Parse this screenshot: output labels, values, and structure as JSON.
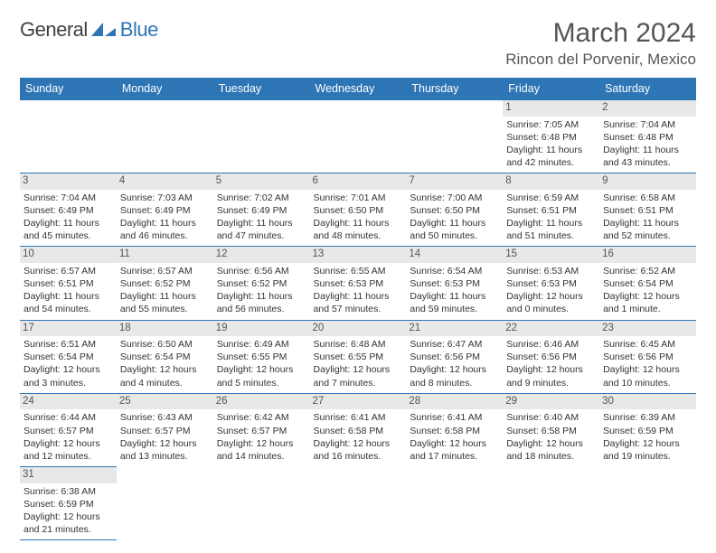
{
  "logo": {
    "text1": "General",
    "text2": "Blue"
  },
  "title": "March 2024",
  "location": "Rincon del Porvenir, Mexico",
  "colors": {
    "header_bg": "#2e75b6",
    "header_fg": "#ffffff",
    "border": "#2e75b6",
    "daynum_bg": "#e8e8e8",
    "text": "#333333"
  },
  "days_of_week": [
    "Sunday",
    "Monday",
    "Tuesday",
    "Wednesday",
    "Thursday",
    "Friday",
    "Saturday"
  ],
  "weeks": [
    [
      null,
      null,
      null,
      null,
      null,
      {
        "n": "1",
        "sr": "Sunrise: 7:05 AM",
        "ss": "Sunset: 6:48 PM",
        "d1": "Daylight: 11 hours",
        "d2": "and 42 minutes."
      },
      {
        "n": "2",
        "sr": "Sunrise: 7:04 AM",
        "ss": "Sunset: 6:48 PM",
        "d1": "Daylight: 11 hours",
        "d2": "and 43 minutes."
      }
    ],
    [
      {
        "n": "3",
        "sr": "Sunrise: 7:04 AM",
        "ss": "Sunset: 6:49 PM",
        "d1": "Daylight: 11 hours",
        "d2": "and 45 minutes."
      },
      {
        "n": "4",
        "sr": "Sunrise: 7:03 AM",
        "ss": "Sunset: 6:49 PM",
        "d1": "Daylight: 11 hours",
        "d2": "and 46 minutes."
      },
      {
        "n": "5",
        "sr": "Sunrise: 7:02 AM",
        "ss": "Sunset: 6:49 PM",
        "d1": "Daylight: 11 hours",
        "d2": "and 47 minutes."
      },
      {
        "n": "6",
        "sr": "Sunrise: 7:01 AM",
        "ss": "Sunset: 6:50 PM",
        "d1": "Daylight: 11 hours",
        "d2": "and 48 minutes."
      },
      {
        "n": "7",
        "sr": "Sunrise: 7:00 AM",
        "ss": "Sunset: 6:50 PM",
        "d1": "Daylight: 11 hours",
        "d2": "and 50 minutes."
      },
      {
        "n": "8",
        "sr": "Sunrise: 6:59 AM",
        "ss": "Sunset: 6:51 PM",
        "d1": "Daylight: 11 hours",
        "d2": "and 51 minutes."
      },
      {
        "n": "9",
        "sr": "Sunrise: 6:58 AM",
        "ss": "Sunset: 6:51 PM",
        "d1": "Daylight: 11 hours",
        "d2": "and 52 minutes."
      }
    ],
    [
      {
        "n": "10",
        "sr": "Sunrise: 6:57 AM",
        "ss": "Sunset: 6:51 PM",
        "d1": "Daylight: 11 hours",
        "d2": "and 54 minutes."
      },
      {
        "n": "11",
        "sr": "Sunrise: 6:57 AM",
        "ss": "Sunset: 6:52 PM",
        "d1": "Daylight: 11 hours",
        "d2": "and 55 minutes."
      },
      {
        "n": "12",
        "sr": "Sunrise: 6:56 AM",
        "ss": "Sunset: 6:52 PM",
        "d1": "Daylight: 11 hours",
        "d2": "and 56 minutes."
      },
      {
        "n": "13",
        "sr": "Sunrise: 6:55 AM",
        "ss": "Sunset: 6:53 PM",
        "d1": "Daylight: 11 hours",
        "d2": "and 57 minutes."
      },
      {
        "n": "14",
        "sr": "Sunrise: 6:54 AM",
        "ss": "Sunset: 6:53 PM",
        "d1": "Daylight: 11 hours",
        "d2": "and 59 minutes."
      },
      {
        "n": "15",
        "sr": "Sunrise: 6:53 AM",
        "ss": "Sunset: 6:53 PM",
        "d1": "Daylight: 12 hours",
        "d2": "and 0 minutes."
      },
      {
        "n": "16",
        "sr": "Sunrise: 6:52 AM",
        "ss": "Sunset: 6:54 PM",
        "d1": "Daylight: 12 hours",
        "d2": "and 1 minute."
      }
    ],
    [
      {
        "n": "17",
        "sr": "Sunrise: 6:51 AM",
        "ss": "Sunset: 6:54 PM",
        "d1": "Daylight: 12 hours",
        "d2": "and 3 minutes."
      },
      {
        "n": "18",
        "sr": "Sunrise: 6:50 AM",
        "ss": "Sunset: 6:54 PM",
        "d1": "Daylight: 12 hours",
        "d2": "and 4 minutes."
      },
      {
        "n": "19",
        "sr": "Sunrise: 6:49 AM",
        "ss": "Sunset: 6:55 PM",
        "d1": "Daylight: 12 hours",
        "d2": "and 5 minutes."
      },
      {
        "n": "20",
        "sr": "Sunrise: 6:48 AM",
        "ss": "Sunset: 6:55 PM",
        "d1": "Daylight: 12 hours",
        "d2": "and 7 minutes."
      },
      {
        "n": "21",
        "sr": "Sunrise: 6:47 AM",
        "ss": "Sunset: 6:56 PM",
        "d1": "Daylight: 12 hours",
        "d2": "and 8 minutes."
      },
      {
        "n": "22",
        "sr": "Sunrise: 6:46 AM",
        "ss": "Sunset: 6:56 PM",
        "d1": "Daylight: 12 hours",
        "d2": "and 9 minutes."
      },
      {
        "n": "23",
        "sr": "Sunrise: 6:45 AM",
        "ss": "Sunset: 6:56 PM",
        "d1": "Daylight: 12 hours",
        "d2": "and 10 minutes."
      }
    ],
    [
      {
        "n": "24",
        "sr": "Sunrise: 6:44 AM",
        "ss": "Sunset: 6:57 PM",
        "d1": "Daylight: 12 hours",
        "d2": "and 12 minutes."
      },
      {
        "n": "25",
        "sr": "Sunrise: 6:43 AM",
        "ss": "Sunset: 6:57 PM",
        "d1": "Daylight: 12 hours",
        "d2": "and 13 minutes."
      },
      {
        "n": "26",
        "sr": "Sunrise: 6:42 AM",
        "ss": "Sunset: 6:57 PM",
        "d1": "Daylight: 12 hours",
        "d2": "and 14 minutes."
      },
      {
        "n": "27",
        "sr": "Sunrise: 6:41 AM",
        "ss": "Sunset: 6:58 PM",
        "d1": "Daylight: 12 hours",
        "d2": "and 16 minutes."
      },
      {
        "n": "28",
        "sr": "Sunrise: 6:41 AM",
        "ss": "Sunset: 6:58 PM",
        "d1": "Daylight: 12 hours",
        "d2": "and 17 minutes."
      },
      {
        "n": "29",
        "sr": "Sunrise: 6:40 AM",
        "ss": "Sunset: 6:58 PM",
        "d1": "Daylight: 12 hours",
        "d2": "and 18 minutes."
      },
      {
        "n": "30",
        "sr": "Sunrise: 6:39 AM",
        "ss": "Sunset: 6:59 PM",
        "d1": "Daylight: 12 hours",
        "d2": "and 19 minutes."
      }
    ],
    [
      {
        "n": "31",
        "sr": "Sunrise: 6:38 AM",
        "ss": "Sunset: 6:59 PM",
        "d1": "Daylight: 12 hours",
        "d2": "and 21 minutes."
      },
      null,
      null,
      null,
      null,
      null,
      null
    ]
  ]
}
